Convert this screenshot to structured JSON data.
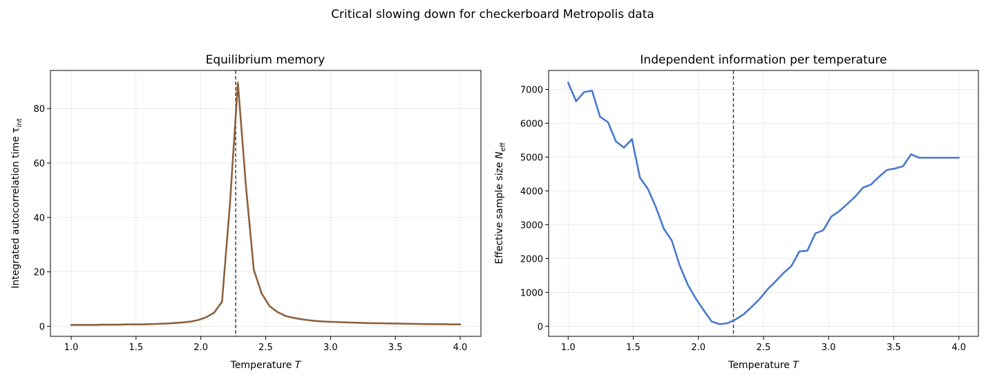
{
  "suptitle": "Critical slowing down for checkerboard Metropolis data",
  "chart_data": [
    {
      "type": "line",
      "title": "Equilibrium memory",
      "xlabel": "Temperature T",
      "ylabel": "Integrated autocorrelation time τ_int",
      "xlim": [
        0.84,
        4.16
      ],
      "ylim": [
        -3.7,
        94
      ],
      "xticks": [
        "1.0",
        "1.5",
        "2.0",
        "2.5",
        "3.0",
        "3.5",
        "4.0"
      ],
      "yticks": [
        "0",
        "20",
        "40",
        "60",
        "80"
      ],
      "grid": true,
      "critical_temperature": 2.269,
      "series": [
        {
          "color": "#8c613c",
          "x": [
            1.0,
            1.0612,
            1.1224,
            1.1837,
            1.2449,
            1.3061,
            1.3673,
            1.4286,
            1.4898,
            1.551,
            1.6122,
            1.6735,
            1.7347,
            1.7959,
            1.8571,
            1.9184,
            1.9796,
            2.0408,
            2.102,
            2.1633,
            2.2245,
            2.2857,
            2.3469,
            2.4082,
            2.4694,
            2.5306,
            2.5918,
            2.6531,
            2.7143,
            2.7755,
            2.8367,
            2.898,
            2.9592,
            3.0204,
            3.0816,
            3.1429,
            3.2041,
            3.2653,
            3.3265,
            3.3878,
            3.449,
            3.5102,
            3.5714,
            3.6327,
            3.6939,
            3.7551,
            3.8163,
            3.8776,
            3.9388,
            4.0
          ],
          "values": [
            0.5,
            0.5,
            0.5,
            0.5,
            0.6,
            0.6,
            0.6,
            0.7,
            0.7,
            0.7,
            0.8,
            0.9,
            1.0,
            1.2,
            1.4,
            1.7,
            2.3,
            3.3,
            5.0,
            9.0,
            45.0,
            89.5,
            52.0,
            20.8,
            12.0,
            7.4,
            5.2,
            3.8,
            3.1,
            2.6,
            2.2,
            1.9,
            1.7,
            1.6,
            1.5,
            1.4,
            1.3,
            1.2,
            1.15,
            1.1,
            1.05,
            1.0,
            0.95,
            0.9,
            0.85,
            0.8,
            0.8,
            0.75,
            0.7,
            0.7
          ]
        }
      ]
    },
    {
      "type": "line",
      "title": "Independent information per temperature",
      "xlabel": "Temperature T",
      "ylabel": "Effective sample size N_eff",
      "xlim": [
        0.85,
        4.15
      ],
      "ylim": [
        -300,
        7560
      ],
      "xticks": [
        "1.0",
        "1.5",
        "2.0",
        "2.5",
        "3.0",
        "3.5",
        "4.0"
      ],
      "yticks": [
        "0",
        "1000",
        "2000",
        "3000",
        "4000",
        "5000",
        "6000",
        "7000"
      ],
      "grid": true,
      "critical_temperature": 2.269,
      "series": [
        {
          "color": "#4878cf",
          "x": [
            1.0,
            1.0612,
            1.1224,
            1.1837,
            1.2449,
            1.3061,
            1.3673,
            1.4286,
            1.4898,
            1.551,
            1.6122,
            1.6735,
            1.7347,
            1.7959,
            1.8571,
            1.9184,
            1.9796,
            2.0408,
            2.102,
            2.1633,
            2.2245,
            2.2857,
            2.3469,
            2.4082,
            2.4694,
            2.5306,
            2.5918,
            2.6531,
            2.7143,
            2.7755,
            2.8367,
            2.898,
            2.9592,
            3.0204,
            3.0816,
            3.1429,
            3.2041,
            3.2653,
            3.3265,
            3.3878,
            3.449,
            3.5102,
            3.5714,
            3.6327,
            3.6939,
            3.7551,
            3.8163,
            3.8776,
            3.9388,
            4.0
          ],
          "values": [
            7200,
            6650,
            6920,
            6960,
            6190,
            6030,
            5460,
            5280,
            5530,
            4390,
            4060,
            3520,
            2880,
            2530,
            1790,
            1230,
            820,
            470,
            140,
            60,
            90,
            200,
            350,
            570,
            800,
            1090,
            1320,
            1570,
            1780,
            2210,
            2230,
            2740,
            2840,
            3240,
            3400,
            3610,
            3830,
            4100,
            4190,
            4420,
            4620,
            4660,
            4730,
            5080,
            4980,
            4980,
            4980,
            4980,
            4980,
            4980
          ]
        }
      ]
    }
  ]
}
